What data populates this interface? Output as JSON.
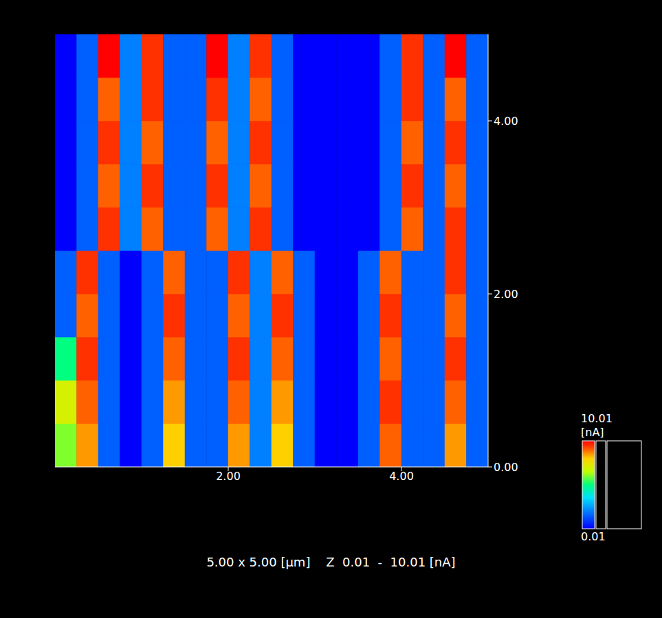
{
  "chart_data": {
    "type": "heatmap",
    "caption": "5.00 x 5.00 [µm]    Z  0.01  -  10.01 [nA]",
    "x_edges": [
      0,
      0.25,
      0.5,
      0.75,
      1,
      1.25,
      1.5,
      1.75,
      2,
      2.25,
      2.5,
      2.75,
      3,
      3.25,
      3.5,
      3.75,
      4,
      4.25,
      4.5,
      4.75,
      5
    ],
    "y_edges": [
      0,
      0.5,
      1,
      1.5,
      2,
      2.5,
      3,
      3.5,
      4,
      4.5,
      5
    ],
    "cells": [
      [
        6,
        8.5,
        1.5,
        0.01,
        1.5,
        8,
        1.5,
        1.5,
        8.5,
        2,
        8,
        1.5,
        0.01,
        0.01,
        1.5,
        9,
        1.5,
        1.5,
        8.5,
        1.5
      ],
      [
        7,
        9,
        1.5,
        0.01,
        1.5,
        8.5,
        1.5,
        1.5,
        9,
        2,
        8.5,
        1.5,
        0.01,
        0.01,
        1.5,
        9.5,
        1.5,
        1.5,
        9,
        1.5
      ],
      [
        5,
        9.5,
        1.5,
        0.01,
        1.5,
        9,
        1.5,
        1.5,
        9.5,
        2,
        9,
        1.5,
        0.01,
        0.01,
        1.5,
        9,
        1.5,
        1.5,
        9.5,
        1.5
      ],
      [
        1.5,
        9,
        1.5,
        0.01,
        1.5,
        9.5,
        1.5,
        1.5,
        9,
        2,
        9.5,
        1.5,
        0.01,
        0.01,
        1.5,
        9.5,
        1.5,
        1.5,
        9,
        1.5
      ],
      [
        1.5,
        9.5,
        1.5,
        0.01,
        1.5,
        9,
        1.5,
        1.5,
        9.5,
        2,
        9,
        1.5,
        0.01,
        0.01,
        1.5,
        9,
        1.5,
        1.5,
        9.5,
        1.5
      ],
      [
        0.01,
        1.5,
        9.5,
        2,
        9,
        1.5,
        1.5,
        9,
        2,
        9.5,
        1.5,
        0.01,
        0.01,
        0.01,
        0.01,
        1.5,
        9,
        1.5,
        9.5,
        1.5
      ],
      [
        0.01,
        1.5,
        9,
        2,
        9.5,
        1.5,
        1.5,
        9.5,
        2,
        9,
        1.5,
        0.01,
        0.01,
        0.01,
        0.01,
        1.5,
        9.5,
        1.5,
        9,
        1.5
      ],
      [
        0.01,
        1.5,
        9.5,
        2,
        9,
        1.5,
        1.5,
        9,
        2,
        9.5,
        1.5,
        0.01,
        0.01,
        0.01,
        0.01,
        1.5,
        9,
        1.5,
        9.5,
        1.5
      ],
      [
        0.01,
        1.5,
        9,
        2,
        9.5,
        1.5,
        1.5,
        9.5,
        2,
        9,
        1.5,
        0.01,
        0.01,
        0.01,
        0.01,
        1.5,
        9.5,
        1.5,
        9,
        1.5
      ],
      [
        0.01,
        1.5,
        10,
        2,
        9.5,
        1.5,
        1.5,
        10,
        2,
        9.5,
        1.5,
        0.01,
        0.01,
        0.01,
        0.01,
        1.5,
        9.5,
        1.5,
        10,
        1.5
      ]
    ],
    "xlim": [
      0,
      5
    ],
    "ylim": [
      0,
      5
    ],
    "xticks": [
      {
        "value": 2,
        "label": "2.00"
      },
      {
        "value": 4,
        "label": "4.00"
      }
    ],
    "yticks": [
      {
        "value": 0,
        "label": "0.00"
      },
      {
        "value": 2,
        "label": "2.00"
      },
      {
        "value": 4,
        "label": "4.00"
      }
    ],
    "colorbar": {
      "range": [
        0.01,
        10.01
      ],
      "ticks": [
        0.01,
        10.01
      ],
      "label": "[nA]"
    }
  }
}
